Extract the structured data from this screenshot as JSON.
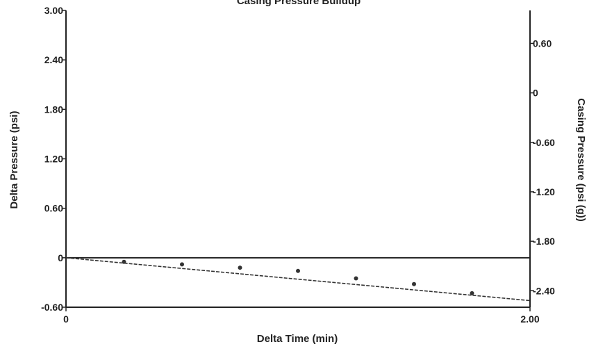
{
  "chart_data": {
    "type": "scatter",
    "title": "Casing Pressure Buildup",
    "xlabel": "Delta Time (min)",
    "ylabel": "Delta Pressure (psi)",
    "y2label": "Casing Pressure (psi (g))",
    "xlim": [
      0,
      2.0
    ],
    "ylim": [
      -0.6,
      3.0
    ],
    "y2lim": [
      -2.6,
      1.0
    ],
    "x_ticks": [
      {
        "value": 0,
        "label": "0"
      },
      {
        "value": 2.0,
        "label": "2.00"
      }
    ],
    "y_ticks": [
      {
        "value": 3.0,
        "label": "3.00"
      },
      {
        "value": 2.4,
        "label": "2.40"
      },
      {
        "value": 1.8,
        "label": "1.80"
      },
      {
        "value": 1.2,
        "label": "1.20"
      },
      {
        "value": 0.6,
        "label": "0.60"
      },
      {
        "value": 0,
        "label": "0"
      },
      {
        "value": -0.6,
        "label": "-0.60"
      }
    ],
    "y2_ticks": [
      {
        "value": 0.6,
        "label": "0.60"
      },
      {
        "value": 0,
        "label": "0"
      },
      {
        "value": -0.6,
        "label": "-0.60"
      },
      {
        "value": -1.2,
        "label": "-1.20"
      },
      {
        "value": -1.8,
        "label": "-1.80"
      },
      {
        "value": -2.4,
        "label": "-2.40"
      }
    ],
    "zero_line": 0,
    "points": [
      {
        "x": 0.25,
        "y": -0.05
      },
      {
        "x": 0.5,
        "y": -0.08
      },
      {
        "x": 0.75,
        "y": -0.12
      },
      {
        "x": 1.0,
        "y": -0.16
      },
      {
        "x": 1.25,
        "y": -0.25
      },
      {
        "x": 1.5,
        "y": -0.32
      },
      {
        "x": 1.75,
        "y": -0.43
      }
    ],
    "trendline": {
      "x": [
        0,
        2.0
      ],
      "y": [
        0,
        -0.52
      ]
    },
    "grid": false,
    "colors": {
      "axis": "#222222",
      "points": "#333333",
      "trend": "#333333"
    }
  }
}
